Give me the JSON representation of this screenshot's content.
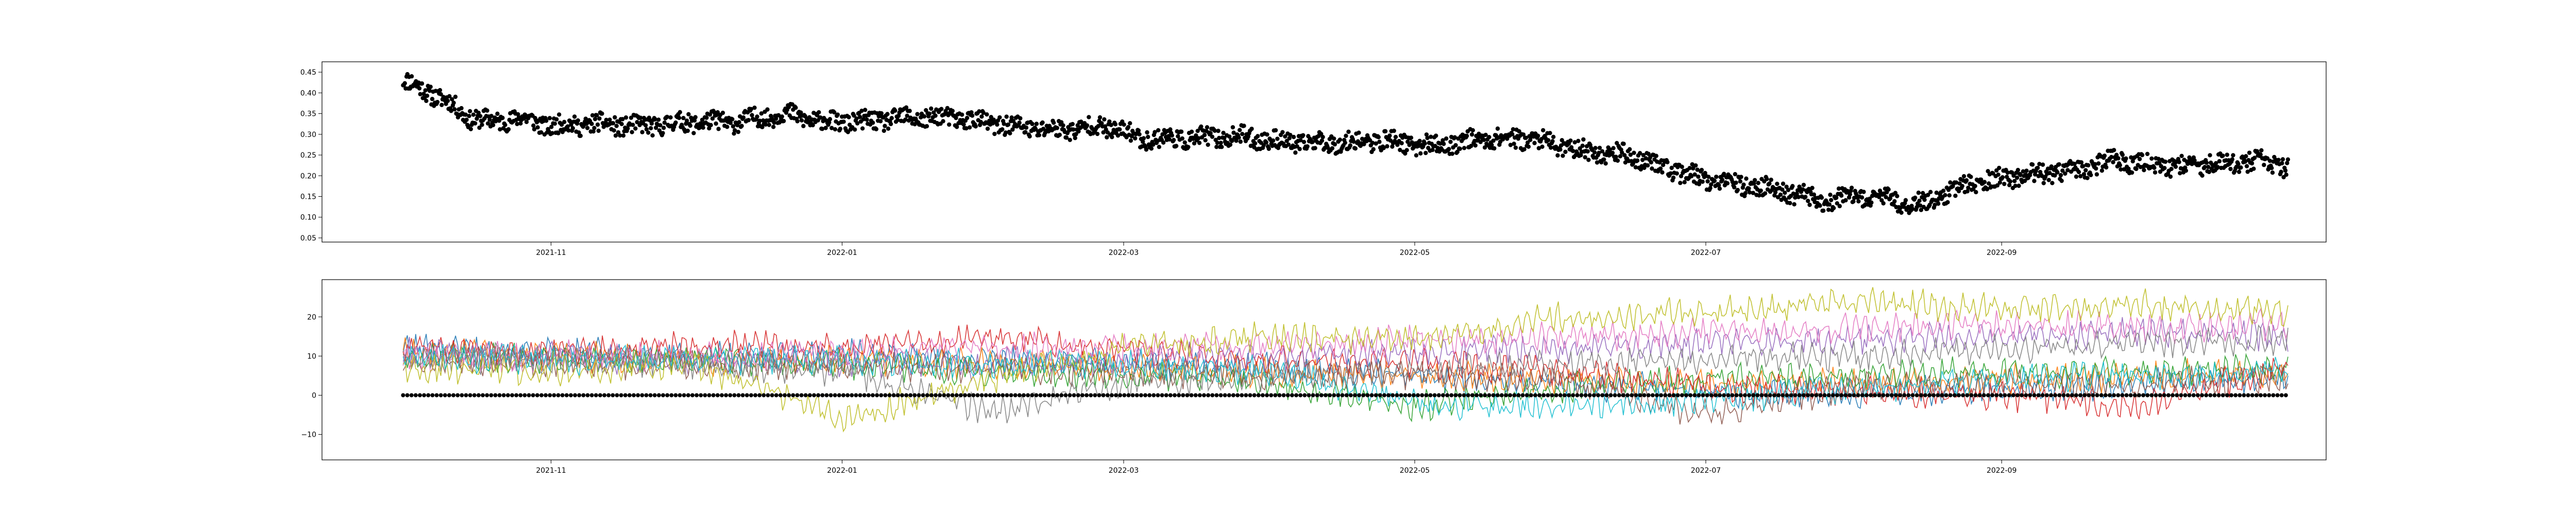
{
  "chart_data": [
    {
      "type": "scatter",
      "x_type": "date",
      "xlim": [
        "2021-09-14",
        "2022-11-08"
      ],
      "ylim": [
        0.04,
        0.475
      ],
      "y_ticks": [
        0.05,
        0.1,
        0.15,
        0.2,
        0.25,
        0.3,
        0.35,
        0.4,
        0.45
      ],
      "y_tick_labels": [
        "0.05",
        "0.10",
        "0.15",
        "0.20",
        "0.25",
        "0.30",
        "0.35",
        "0.40",
        "0.45"
      ],
      "x_ticks": [
        "2021-11-01",
        "2022-01-01",
        "2022-03-01",
        "2022-05-01",
        "2022-07-01",
        "2022-09-01"
      ],
      "x_tick_labels": [
        "2021-11",
        "2022-01",
        "2022-03",
        "2022-05",
        "2022-07",
        "2022-09"
      ],
      "grid": false,
      "legend": "none",
      "series": [
        {
          "color": "#000000",
          "marker": "circle",
          "points": [
            [
              "2021-10-01",
              0.43
            ],
            [
              "2021-10-05",
              0.41
            ],
            [
              "2021-10-10",
              0.38
            ],
            [
              "2021-10-15",
              0.34
            ],
            [
              "2021-10-20",
              0.33
            ],
            [
              "2021-10-25",
              0.34
            ],
            [
              "2021-11-01",
              0.32
            ],
            [
              "2021-11-10",
              0.325
            ],
            [
              "2021-11-20",
              0.32
            ],
            [
              "2021-12-01",
              0.33
            ],
            [
              "2021-12-10",
              0.33
            ],
            [
              "2021-12-20",
              0.35
            ],
            [
              "2021-12-28",
              0.33
            ],
            [
              "2022-01-05",
              0.33
            ],
            [
              "2022-01-15",
              0.34
            ],
            [
              "2022-01-25",
              0.34
            ],
            [
              "2022-02-05",
              0.32
            ],
            [
              "2022-02-15",
              0.31
            ],
            [
              "2022-02-25",
              0.32
            ],
            [
              "2022-03-05",
              0.29
            ],
            [
              "2022-03-15",
              0.29
            ],
            [
              "2022-03-25",
              0.295
            ],
            [
              "2022-04-05",
              0.28
            ],
            [
              "2022-04-15",
              0.28
            ],
            [
              "2022-04-25",
              0.285
            ],
            [
              "2022-05-05",
              0.27
            ],
            [
              "2022-05-15",
              0.29
            ],
            [
              "2022-05-25",
              0.29
            ],
            [
              "2022-06-05",
              0.26
            ],
            [
              "2022-06-15",
              0.25
            ],
            [
              "2022-06-25",
              0.21
            ],
            [
              "2022-07-05",
              0.18
            ],
            [
              "2022-07-15",
              0.17
            ],
            [
              "2022-07-25",
              0.14
            ],
            [
              "2022-08-05",
              0.15
            ],
            [
              "2022-08-15",
              0.13
            ],
            [
              "2022-08-25",
              0.18
            ],
            [
              "2022-09-05",
              0.2
            ],
            [
              "2022-09-15",
              0.21
            ],
            [
              "2022-09-25",
              0.24
            ],
            [
              "2022-10-05",
              0.22
            ],
            [
              "2022-10-15",
              0.23
            ],
            [
              "2022-10-25",
              0.235
            ],
            [
              "2022-10-31",
              0.22
            ]
          ]
        }
      ]
    },
    {
      "type": "line",
      "x_type": "date",
      "xlim": [
        "2021-09-14",
        "2022-11-08"
      ],
      "ylim": [
        -16.5,
        29.5
      ],
      "y_ticks": [
        -10,
        0,
        10,
        20
      ],
      "y_tick_labels": [
        "−10",
        "0",
        "10",
        "20"
      ],
      "x_ticks": [
        "2021-11-01",
        "2022-01-01",
        "2022-03-01",
        "2022-05-01",
        "2022-07-01",
        "2022-09-01"
      ],
      "x_tick_labels": [
        "2021-11",
        "2022-01",
        "2022-03",
        "2022-05",
        "2022-07",
        "2022-09"
      ],
      "grid": false,
      "legend": "none",
      "x": [
        "2021-10-01",
        "2021-11-01",
        "2021-12-01",
        "2022-01-01",
        "2022-02-01",
        "2022-03-01",
        "2022-04-01",
        "2022-05-01",
        "2022-06-01",
        "2022-07-01",
        "2022-08-01",
        "2022-09-01",
        "2022-10-01",
        "2022-10-31"
      ],
      "series": [
        {
          "color": "#1f77b4",
          "values": [
            12,
            11,
            10,
            11,
            9,
            8,
            7,
            5,
            3,
            1,
            0,
            2,
            3,
            5
          ]
        },
        {
          "color": "#ff7f0e",
          "values": [
            11,
            10,
            9,
            9,
            8,
            7,
            6,
            5,
            4,
            3,
            3,
            4,
            5,
            6
          ]
        },
        {
          "color": "#2ca02c",
          "values": [
            10,
            9,
            9,
            8,
            6,
            5,
            3,
            -3,
            2,
            4,
            5,
            6,
            6,
            7
          ]
        },
        {
          "color": "#d62728",
          "values": [
            12,
            11,
            13,
            12,
            15,
            11,
            9,
            8,
            6,
            2,
            1,
            0,
            -3,
            8
          ]
        },
        {
          "color": "#9467bd",
          "values": [
            11,
            10,
            9,
            8,
            8,
            9,
            10,
            11,
            12,
            13,
            14,
            15,
            16,
            15
          ]
        },
        {
          "color": "#8c564b",
          "values": [
            9,
            8,
            8,
            7,
            7,
            6,
            5,
            5,
            4,
            -5,
            2,
            3,
            3,
            4
          ]
        },
        {
          "color": "#e377c2",
          "values": [
            9,
            10,
            10,
            11,
            12,
            12,
            13,
            14,
            15,
            16,
            17,
            18,
            17,
            18
          ]
        },
        {
          "color": "#7f7f7f",
          "values": [
            10,
            9,
            8,
            6,
            -4,
            3,
            5,
            6,
            8,
            9,
            10,
            12,
            13,
            14
          ]
        },
        {
          "color": "#bcbd22",
          "values": [
            7,
            6,
            8,
            -6,
            4,
            12,
            15,
            14,
            20,
            21,
            24,
            22,
            23,
            21
          ]
        },
        {
          "color": "#17becf",
          "values": [
            10,
            9,
            9,
            9,
            8,
            8,
            6,
            -2,
            -3,
            -1,
            2,
            4,
            5,
            6
          ]
        },
        {
          "color": "#000000",
          "style": "markers",
          "values": [
            0,
            0,
            0,
            0,
            0,
            0,
            0,
            0,
            0,
            0,
            0,
            0,
            0,
            0
          ]
        }
      ]
    }
  ]
}
